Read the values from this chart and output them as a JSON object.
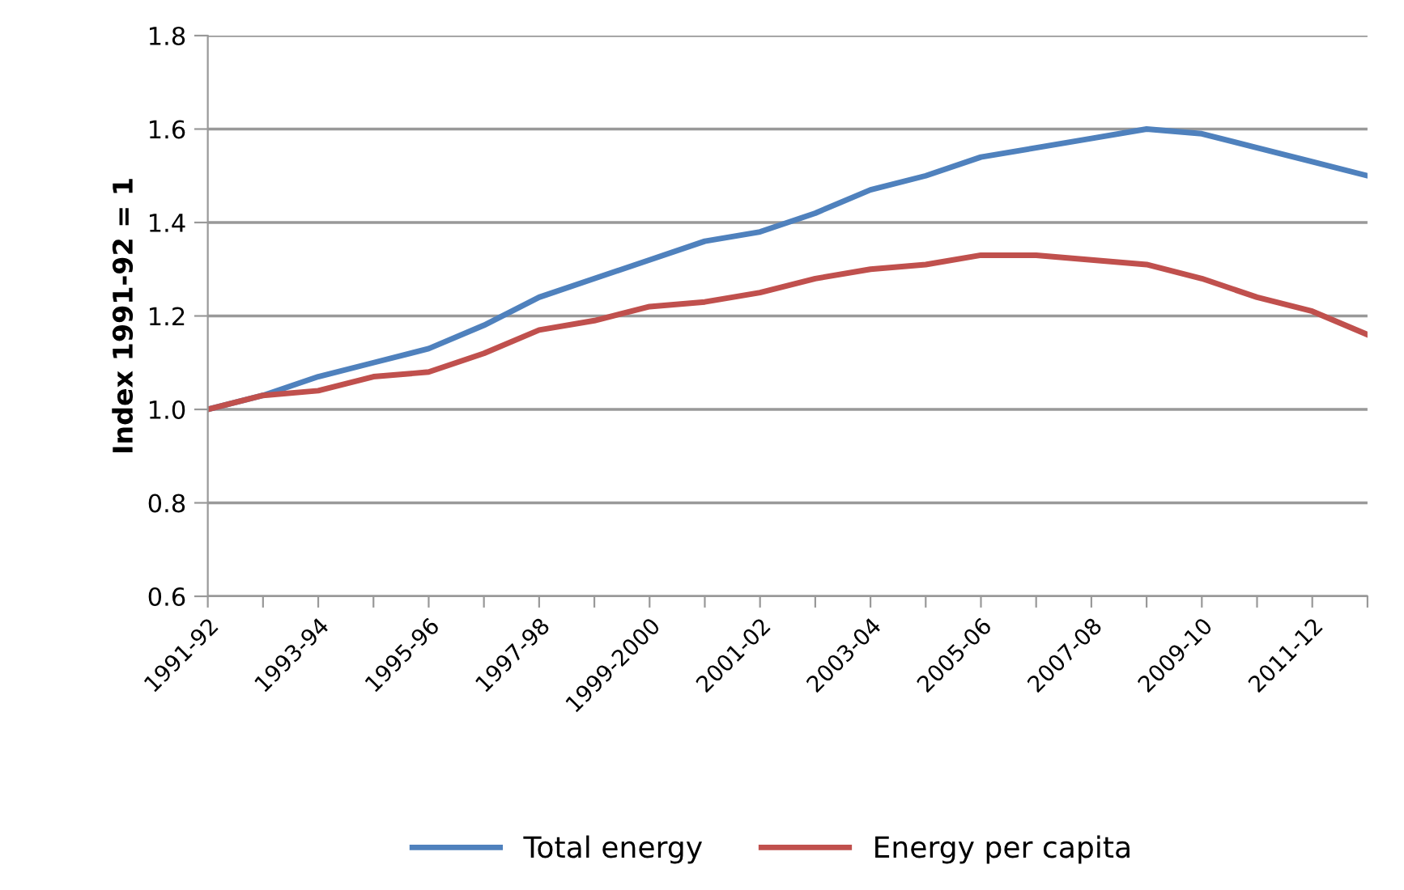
{
  "chart_data": {
    "type": "line",
    "ylabel": "Index 1991-92 = 1",
    "categories": [
      "1991-92",
      null,
      "1993-94",
      null,
      "1995-96",
      null,
      "1997-98",
      null,
      "1999-2000",
      null,
      "2001-02",
      null,
      "2003-04",
      null,
      "2005-06",
      null,
      "2007-08",
      null,
      "2009-10",
      null,
      "2011-12",
      null
    ],
    "series": [
      {
        "name": "Total energy",
        "color": "#4f81bd",
        "values": [
          1.0,
          1.03,
          1.07,
          1.1,
          1.13,
          1.18,
          1.24,
          1.28,
          1.32,
          1.36,
          1.38,
          1.42,
          1.47,
          1.5,
          1.54,
          1.56,
          1.58,
          1.6,
          1.59,
          1.56,
          1.53,
          1.5
        ]
      },
      {
        "name": "Energy per capita",
        "color": "#c0504d",
        "values": [
          1.0,
          1.03,
          1.04,
          1.07,
          1.08,
          1.12,
          1.17,
          1.19,
          1.22,
          1.23,
          1.25,
          1.28,
          1.3,
          1.31,
          1.33,
          1.33,
          1.32,
          1.31,
          1.28,
          1.24,
          1.21,
          1.16
        ]
      }
    ],
    "ylim": [
      0.6,
      1.8
    ],
    "yticks": [
      {
        "value": 0.6,
        "label": "0.6"
      },
      {
        "value": 0.8,
        "label": "0.8"
      },
      {
        "value": 1.0,
        "label": "1.0"
      },
      {
        "value": 1.2,
        "label": "1.2"
      },
      {
        "value": 1.4,
        "label": "1.4"
      },
      {
        "value": 1.6,
        "label": "1.6"
      },
      {
        "value": 1.8,
        "label": "1.8"
      }
    ],
    "grid": "y",
    "legend": "bottom",
    "marker": "none",
    "line_style": "solid"
  }
}
